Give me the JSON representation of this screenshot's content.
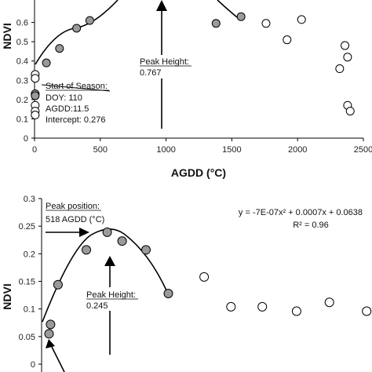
{
  "chart_data": [
    {
      "type": "scatter",
      "title": "",
      "xlabel": "AGDD (°C)",
      "ylabel": "NDVI",
      "xlim": [
        0,
        2500
      ],
      "ylim": [
        0,
        0.7
      ],
      "x_ticks": [
        "0",
        "500",
        "1000",
        "1500",
        "2000",
        "2500"
      ],
      "y_ticks": [
        "0",
        "0.1",
        "0.2",
        "0.3",
        "0.4",
        "0.5",
        "0.6"
      ],
      "grid": false,
      "series": [
        {
          "marker": "filled",
          "x": [
            5,
            5,
            90,
            190,
            320,
            420,
            1380,
            1570
          ],
          "y": [
            0.23,
            0.22,
            0.39,
            0.465,
            0.57,
            0.61,
            0.595,
            0.63
          ]
        },
        {
          "marker": "open",
          "x": [
            5,
            5,
            5,
            5,
            5,
            1760,
            1920,
            2030,
            2320,
            2360,
            2380,
            2380,
            2400
          ],
          "y": [
            0.33,
            0.31,
            0.17,
            0.14,
            0.12,
            0.595,
            0.51,
            0.615,
            0.36,
            0.48,
            0.42,
            0.17,
            0.14
          ]
        }
      ],
      "annotations": {
        "peak_label": "Peak Height:",
        "peak_value": "0.767",
        "sos_title": "Start of Season:",
        "sos_doy": "DOY: 110",
        "sos_agdd": "AGDD:11.5",
        "sos_intercept": "Intercept: 0.276"
      }
    },
    {
      "type": "scatter",
      "title": "",
      "xlabel": "",
      "ylabel": "NDVI",
      "ylim": [
        0,
        0.3
      ],
      "y_ticks": [
        "0",
        "0.05",
        "0.1",
        "0.15",
        "0.2",
        "0.25",
        "0.3"
      ],
      "grid": false,
      "series": [
        {
          "marker": "filled",
          "x": [
            50,
            60,
            110,
            300,
            440,
            540,
            700,
            850
          ],
          "y": [
            0.055,
            0.072,
            0.144,
            0.207,
            0.239,
            0.223,
            0.207,
            0.128
          ]
        },
        {
          "marker": "open",
          "x": [
            1090,
            1270,
            1480,
            1710,
            1930,
            2180
          ],
          "y": [
            0.158,
            0.104,
            0.104,
            0.096,
            0.112,
            0.096
          ]
        }
      ],
      "annotations": {
        "peak_pos_label": "Peak position:",
        "peak_pos_value": "518 AGDD (°C)",
        "equation": "y = -7E-07x² + 0.0007x + 0.0638",
        "r2": "R² = 0.96",
        "peak_label": "Peak Height:",
        "peak_value": "0.245"
      }
    }
  ]
}
